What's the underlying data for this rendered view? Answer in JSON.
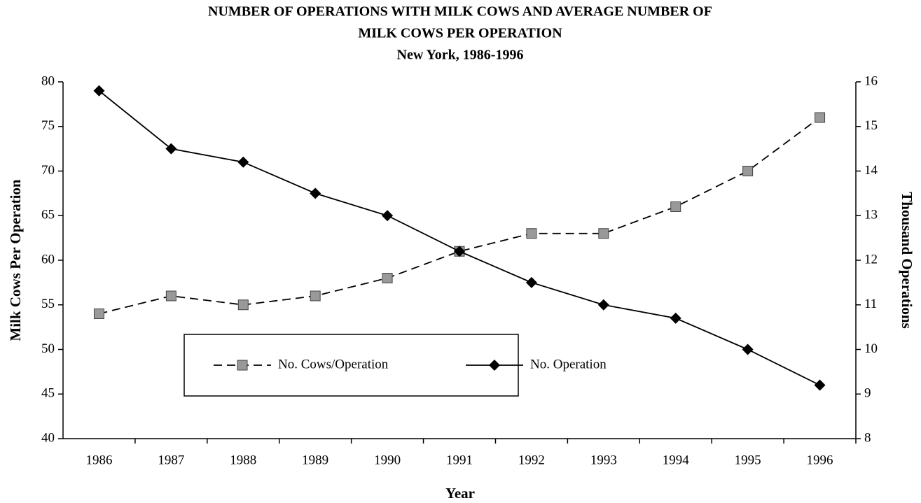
{
  "chart_data": {
    "type": "line",
    "title": [
      "NUMBER OF OPERATIONS WITH MILK COWS AND AVERAGE NUMBER OF",
      "MILK COWS PER OPERATION"
    ],
    "subtitle": "New York, 1986-1996",
    "x_label": "Year",
    "y_label": "Milk Cows Per Operation",
    "y2_label": "Thousand Operations",
    "categories": [
      "1986",
      "1987",
      "1988",
      "1989",
      "1990",
      "1991",
      "1992",
      "1993",
      "1994",
      "1995",
      "1996"
    ],
    "series": [
      {
        "name": "No. Cows/Operation",
        "color": "#999999",
        "line_style": "dashed",
        "marker": "square",
        "values": [
          54,
          56,
          55,
          56,
          58,
          61,
          63,
          63,
          66,
          70,
          76
        ]
      },
      {
        "name": "No. Operation",
        "color": "#000000",
        "line_style": "solid",
        "marker": "diamond",
        "axis": "y2",
        "values": [
          15.8,
          14.5,
          14.2,
          13.5,
          13.0,
          12.2,
          11.5,
          11.0,
          10.7,
          10.0,
          9.2
        ]
      }
    ],
    "ylim": [
      40,
      80
    ],
    "yticks": [
      40,
      45,
      50,
      55,
      60,
      65,
      70,
      75,
      80
    ],
    "y2lim": [
      8,
      16
    ],
    "y2ticks": [
      8,
      9,
      10,
      11,
      12,
      13,
      14,
      15,
      16
    ]
  }
}
